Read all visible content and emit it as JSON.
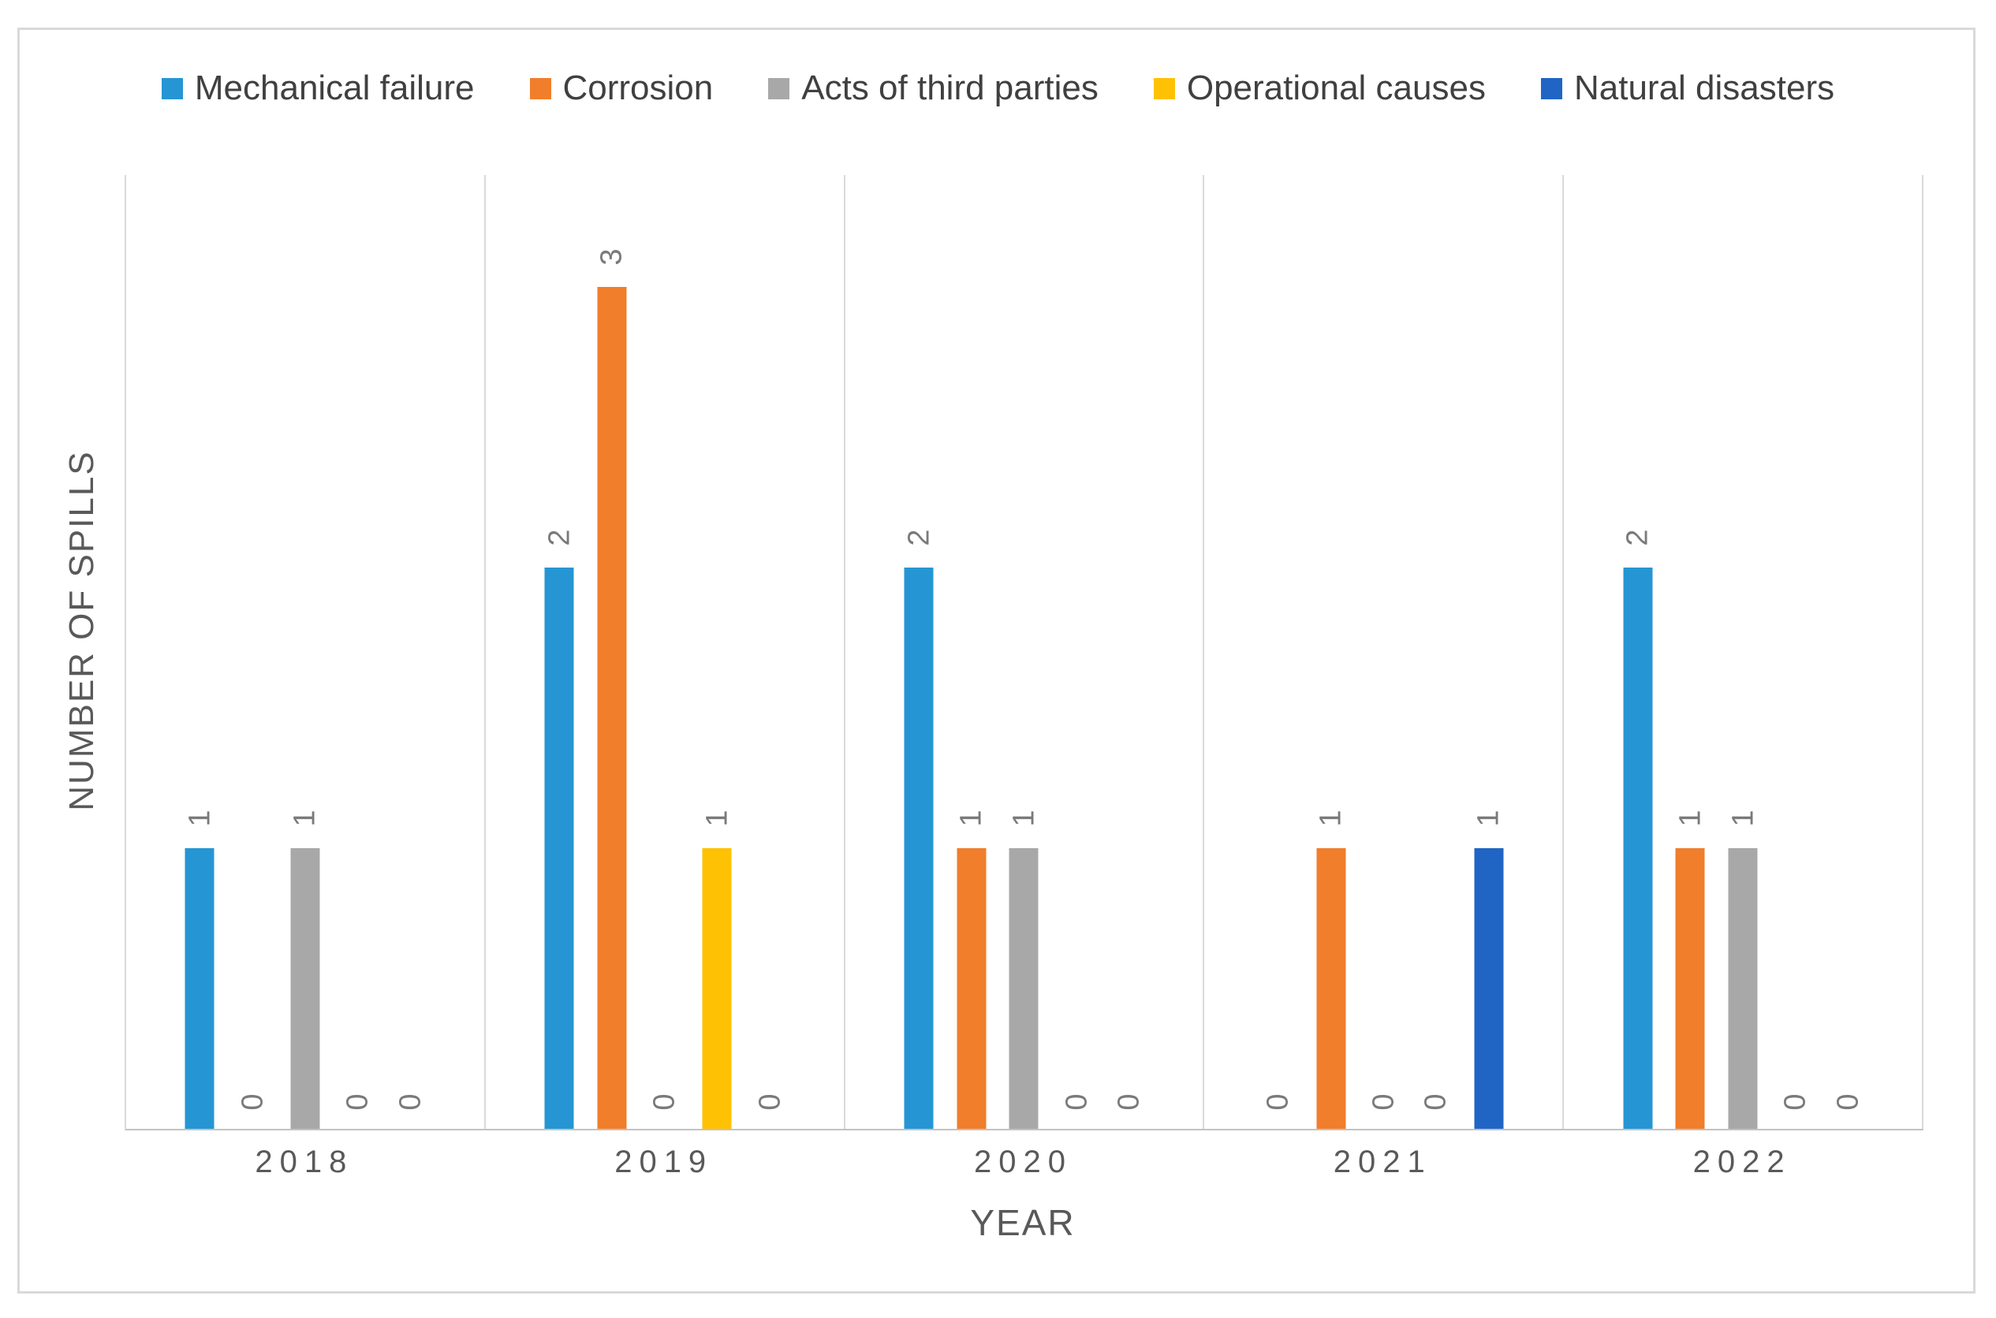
{
  "figure": {
    "type_note": "clustered column chart, no title, thin gray outer border",
    "accent_colors": {
      "mechanical_failure": "#2596D3",
      "corrosion": "#F07E2B",
      "acts_of_third_parties": "#A8A8A8",
      "operational_causes": "#FFC104",
      "natural_disasters": "#2065C4"
    }
  },
  "axes": {
    "x_title": "YEAR",
    "y_title": "NUMBER OF SPILLS"
  },
  "chart_data": {
    "type": "bar",
    "title": "",
    "categories": [
      "2018",
      "2019",
      "2020",
      "2021",
      "2022"
    ],
    "series": [
      {
        "name": "Mechanical failure",
        "color": "#2596D3",
        "values": [
          1,
          2,
          2,
          0,
          2
        ]
      },
      {
        "name": "Corrosion",
        "color": "#F07E2B",
        "values": [
          0,
          3,
          1,
          1,
          1
        ]
      },
      {
        "name": "Acts of third parties",
        "color": "#A8A8A8",
        "values": [
          1,
          0,
          1,
          0,
          1
        ]
      },
      {
        "name": "Operational causes",
        "color": "#FFC104",
        "values": [
          0,
          1,
          0,
          0,
          0
        ]
      },
      {
        "name": "Natural disasters",
        "color": "#2065C4",
        "values": [
          0,
          0,
          0,
          1,
          0
        ]
      }
    ],
    "xlabel": "YEAR",
    "ylabel": "NUMBER OF SPILLS",
    "ylim": [
      0,
      3.4
    ],
    "grid": "vertical category separators only, no horizontal gridlines, no y tick labels",
    "data_labels": "every bar labeled with its value, labels rotated 90 degrees reading bottom-to-top, zeros placed at baseline",
    "legend_position": "top center"
  }
}
